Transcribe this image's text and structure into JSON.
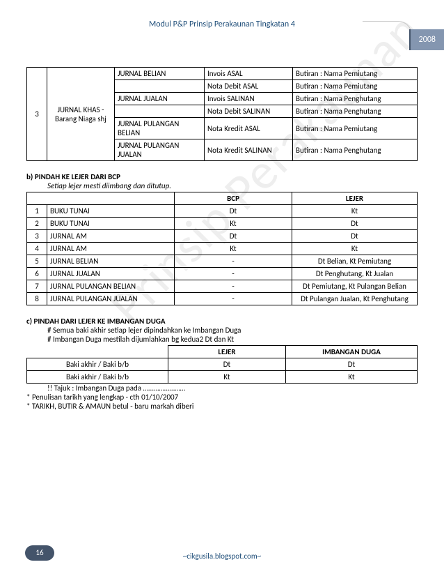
{
  "header": {
    "title": "Modul P&P Prinsip Perakaunan Tingkatan 4",
    "year": "2008"
  },
  "watermark": "Prinsip Perakaunan",
  "table1": {
    "row_num": "3",
    "row_group": "JURNAL KHAS - Barang Niaga shj",
    "rows": [
      {
        "c2": "JURNAL BELIAN",
        "c3": "Invois ASAL",
        "c4": "Butiran : Nama Pemiutang"
      },
      {
        "c2": "",
        "c3": "Nota Debit ASAL",
        "c4": "Butiran : Nama Pemiutang"
      },
      {
        "c2": "JURNAL JUALAN",
        "c3": "Invois SALINAN",
        "c4": "Butiran : Nama Penghutang"
      },
      {
        "c2": "",
        "c3": "Nota Debit SALINAN",
        "c4": "Butiran : Nama Penghutang"
      },
      {
        "c2": " JURNAL PULANGAN BELIAN",
        "c3": "Nota Kredit ASAL",
        "c4": "Butiran : Nama Pemiutang"
      },
      {
        "c2": " JURNAL PULANGAN JUALAN",
        "c3": "Nota Kredit SALINAN",
        "c4": "Butiran : Nama Penghutang"
      }
    ]
  },
  "section_b": {
    "label": "b) PINDAH KE LEJER DARI BCP",
    "note": "Setiap lejer mesti diimbang dan ditutup.",
    "headers": {
      "h2": "BCP",
      "h3": "LEJER"
    },
    "rows": [
      {
        "n": "1",
        "name": "BUKU TUNAI",
        "bcp": "Dt",
        "lejer": "Kt"
      },
      {
        "n": "2",
        "name": "BUKU TUNAI",
        "bcp": "Kt",
        "lejer": "Dt"
      },
      {
        "n": "3",
        "name": "JURNAL AM",
        "bcp": "Dt",
        "lejer": "Dt"
      },
      {
        "n": "4",
        "name": "JURNAL AM",
        "bcp": "Kt",
        "lejer": "Kt"
      },
      {
        "n": "5",
        "name": "JURNAL BELIAN",
        "bcp": "-",
        "lejer": "Dt Belian, Kt Pemiutang"
      },
      {
        "n": "6",
        "name": "JURNAL JUALAN",
        "bcp": "-",
        "lejer": "Dt Penghutang, Kt Jualan"
      },
      {
        "n": "7",
        "name": "JURNAL PULANGAN BELIAN",
        "bcp": "-",
        "lejer": "Dt Pemiutang, Kt Pulangan Belian"
      },
      {
        "n": "8",
        "name": "JURNAL PULANGAN JUALAN",
        "bcp": "-",
        "lejer": "Dt Pulangan Jualan, Kt Penghutang"
      }
    ]
  },
  "section_c": {
    "label": "c) PINDAH DARI LEJER KE IMBANGAN DUGA",
    "note1": "# Semua baki akhir setiap lejer dipindahkan ke Imbangan Duga",
    "note2": "# Imbangan Duga mestilah dijumlahkan bg kedua2 Dt dan Kt",
    "headers": {
      "h1": "LEJER",
      "h2": "IMBANGAN DUGA"
    },
    "rows": [
      {
        "c0": "Baki akhir / Baki b/b",
        "c1": "Dt",
        "c2": "Dt"
      },
      {
        "c0": "Baki akhir / Baki b/b",
        "c1": "Kt",
        "c2": "Kt"
      }
    ],
    "post1": "!! Tajuk : Imbangan Duga pada ……………………",
    "post2": "* Penulisan tarikh yang lengkap - cth 01/10/2007",
    "post3": "* TARIKH, BUTIR & AMAUN betul - baru markah diberi"
  },
  "footer": {
    "page": "16",
    "site": "~cikgusila.blogspot.com~"
  }
}
